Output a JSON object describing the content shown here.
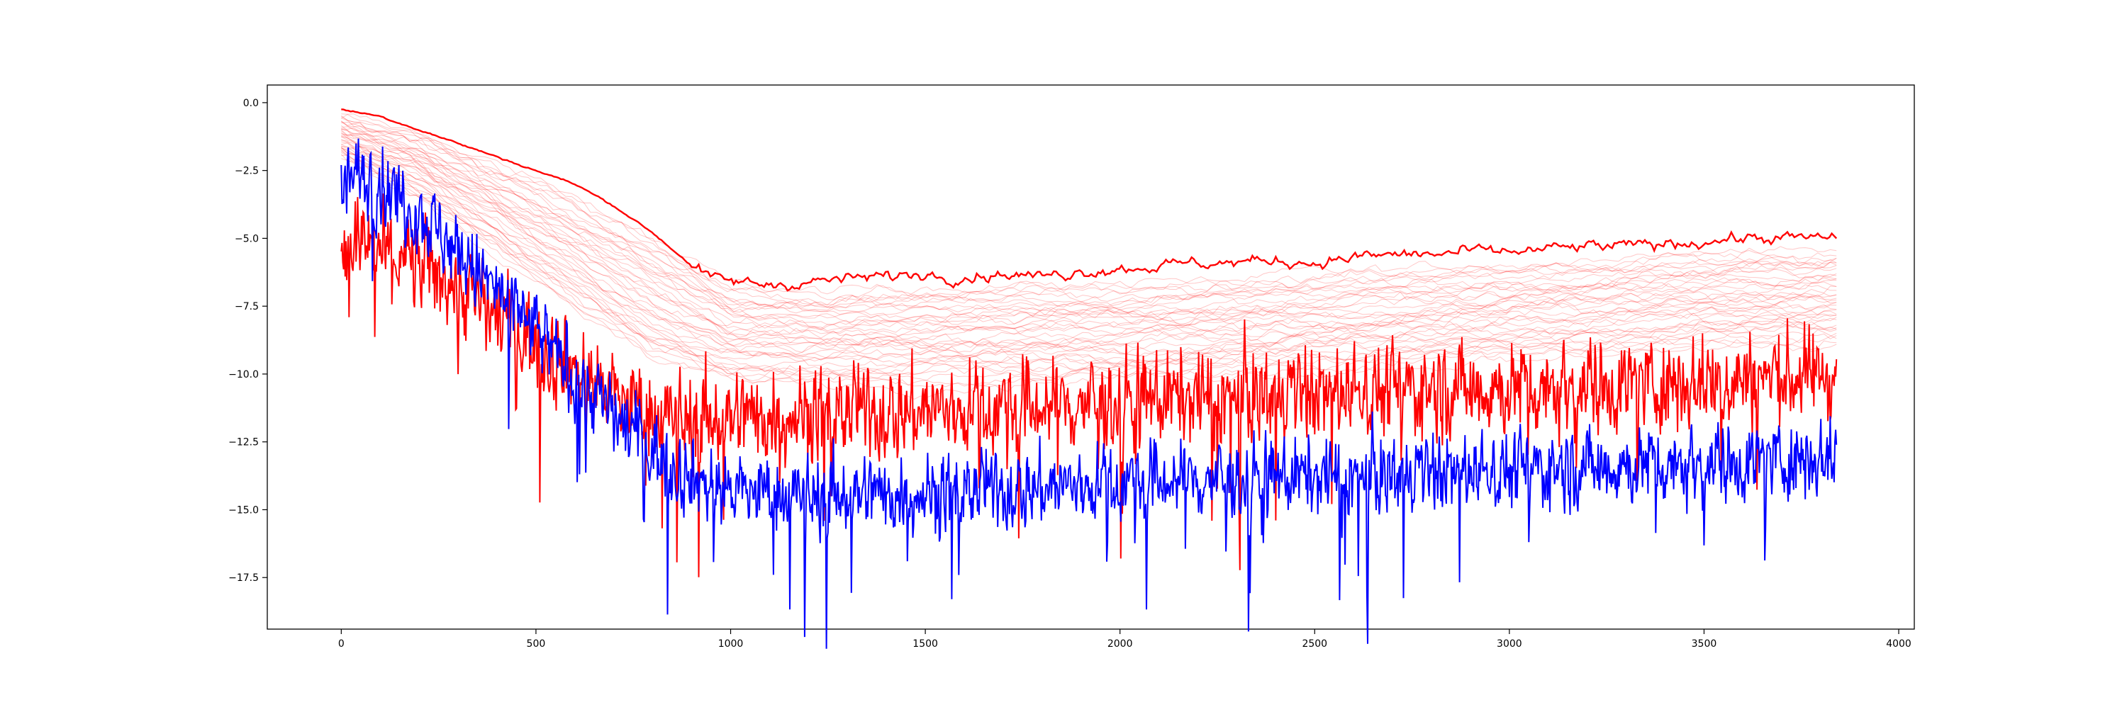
{
  "chart_data": {
    "type": "line",
    "title": "",
    "xlabel": "",
    "ylabel": "",
    "xlim": [
      -190,
      4040
    ],
    "ylim": [
      -19.4,
      0.65
    ],
    "x_ticks": [
      0,
      500,
      1000,
      1500,
      2000,
      2500,
      3000,
      3500,
      4000
    ],
    "x_tick_labels": [
      "0",
      "500",
      "1000",
      "1500",
      "2000",
      "2500",
      "3000",
      "3500",
      "4000"
    ],
    "y_ticks": [
      0.0,
      -2.5,
      -5.0,
      -7.5,
      -10.0,
      -12.5,
      -15.0,
      -17.5
    ],
    "y_tick_labels": [
      "0.0",
      "−2.5",
      "−5.0",
      "−7.5",
      "−10.0",
      "−12.5",
      "−15.0",
      "−17.5"
    ],
    "grid": false,
    "legend": "none",
    "x_range": [
      0,
      3840
    ],
    "series": [
      {
        "style": "faint band of many thin lines",
        "color": "#ff0000",
        "x": [
          0,
          200,
          400,
          600,
          800,
          1000,
          1250,
          1500,
          1750,
          2000,
          2250,
          2500,
          2750,
          3000,
          3250,
          3500,
          3840
        ],
        "upper": [
          -0.5,
          -1.2,
          -2.3,
          -3.5,
          -5.0,
          -6.8,
          -7.0,
          -6.9,
          -6.8,
          -6.8,
          -6.6,
          -6.4,
          -6.2,
          -6.0,
          -5.8,
          -5.6,
          -5.5
        ],
        "lower": [
          -2.0,
          -3.5,
          -5.5,
          -7.5,
          -9.5,
          -10.2,
          -10.3,
          -10.3,
          -10.2,
          -10.1,
          -10.0,
          -9.8,
          -9.6,
          -9.4,
          -9.2,
          -9.0,
          -8.8
        ]
      },
      {
        "style": "solid upper envelope",
        "color": "#ff0000",
        "x": [
          0,
          100,
          200,
          300,
          400,
          500,
          600,
          700,
          800,
          900,
          950,
          1000,
          1100,
          1200,
          1300,
          1400,
          1500,
          1600,
          1700,
          1800,
          1900,
          2000,
          2100,
          2200,
          2300,
          2400,
          2500,
          2600,
          2700,
          2800,
          2900,
          3000,
          3100,
          3200,
          3300,
          3400,
          3500,
          3600,
          3700,
          3840
        ],
        "y": [
          -0.25,
          -0.5,
          -1.0,
          -1.5,
          -2.0,
          -2.5,
          -3.0,
          -3.8,
          -4.8,
          -6.0,
          -6.5,
          -6.6,
          -6.7,
          -6.6,
          -6.5,
          -6.4,
          -6.3,
          -6.4,
          -6.3,
          -6.4,
          -6.2,
          -6.1,
          -6.0,
          -5.9,
          -5.9,
          -5.8,
          -5.9,
          -5.7,
          -5.6,
          -5.6,
          -5.5,
          -5.5,
          -5.4,
          -5.3,
          -5.3,
          -5.2,
          -5.1,
          -5.0,
          -5.0,
          -5.0
        ]
      },
      {
        "style": "noisy",
        "color": "#ff0000",
        "x": [
          0,
          100,
          200,
          300,
          400,
          500,
          600,
          700,
          800,
          900,
          1000,
          1200,
          1400,
          1600,
          1800,
          2000,
          2200,
          2400,
          2600,
          2800,
          3000,
          3200,
          3400,
          3600,
          3840
        ],
        "mean": [
          -5.0,
          -5.5,
          -6.0,
          -6.8,
          -7.8,
          -8.8,
          -9.8,
          -10.8,
          -11.4,
          -11.6,
          -11.6,
          -11.4,
          -11.4,
          -11.3,
          -11.2,
          -11.0,
          -10.8,
          -10.7,
          -10.6,
          -10.5,
          -10.5,
          -10.4,
          -10.3,
          -10.2,
          -10.0
        ],
        "spread": 1.2
      },
      {
        "style": "noisy",
        "color": "#0000ff",
        "x": [
          0,
          50,
          100,
          200,
          300,
          400,
          500,
          600,
          700,
          800,
          900,
          1000,
          1200,
          1400,
          1600,
          1800,
          2000,
          2200,
          2400,
          2600,
          2800,
          3000,
          3200,
          3400,
          3600,
          3840
        ],
        "mean": [
          -3.0,
          -2.6,
          -3.0,
          -4.0,
          -5.5,
          -7.0,
          -8.5,
          -10.0,
          -11.5,
          -12.8,
          -13.8,
          -14.3,
          -14.4,
          -14.4,
          -14.3,
          -14.2,
          -14.0,
          -13.9,
          -13.8,
          -13.7,
          -13.6,
          -13.5,
          -13.4,
          -13.3,
          -13.2,
          -13.0
        ],
        "spread": 1.0
      }
    ]
  }
}
